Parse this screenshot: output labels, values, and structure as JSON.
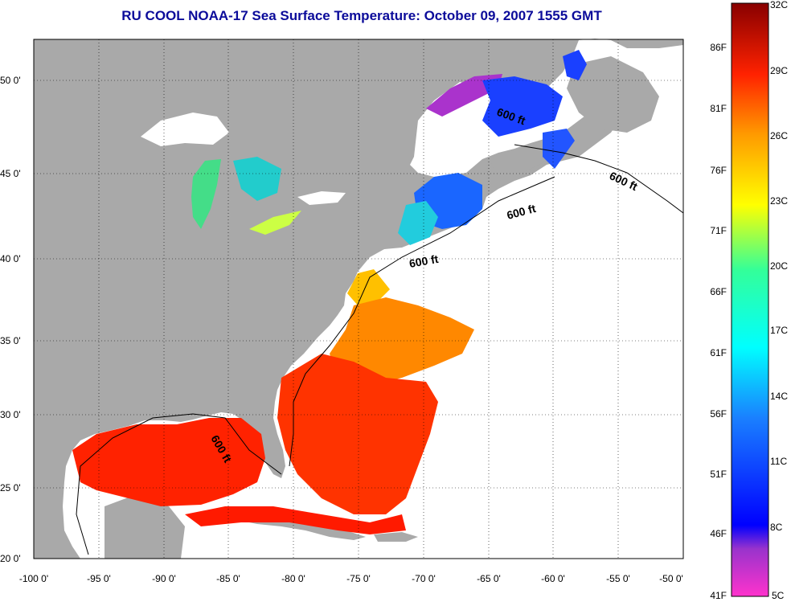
{
  "title": "RU COOL  NOAA-17  Sea Surface Temperature:  October 09, 2007 1555 GMT",
  "lat_labels": [
    "50 0'",
    "45 0'",
    "40 0'",
    "35 0'",
    "30 0'",
    "25 0'",
    "20 0'"
  ],
  "lon_labels": [
    "-100 0'",
    "-95 0'",
    "-90 0'",
    "-85 0'",
    "-80 0'",
    "-75 0'",
    "-70 0'",
    "-65 0'",
    "-60 0'",
    "-55 0'",
    "-50 0'"
  ],
  "isobath_labels": [
    "600 ft",
    "600 ft",
    "600 ft",
    "600 ft",
    "600 ft"
  ],
  "colorbar": {
    "fahrenheit": [
      "86F",
      "81F",
      "76F",
      "71F",
      "66F",
      "61F",
      "56F",
      "51F",
      "46F",
      "41F"
    ],
    "celsius": [
      "32C",
      "29C",
      "26C",
      "23C",
      "20C",
      "17C",
      "14C",
      "11C",
      "8C",
      "5C"
    ]
  },
  "colors": {
    "land": "#a9a9a9",
    "title": "#0b0b9a",
    "hot": "#ff2a00",
    "warm": "#ff7a00",
    "cool": "#1a40ff",
    "cold": "#cc22cc"
  }
}
